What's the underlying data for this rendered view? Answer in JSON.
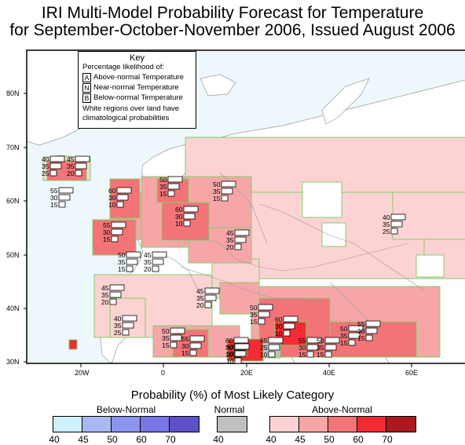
{
  "title_line1": "IRI Multi-Model Probability Forecast for Temperature",
  "title_line2": "for September-October-November 2006, Issued August 2006",
  "key": {
    "heading": "Key",
    "subheading": "Percentage likelihood of:",
    "rows": [
      {
        "letter": "A",
        "label": "Above-normal Temperature"
      },
      {
        "letter": "N",
        "label": "Near-normal Temperature"
      },
      {
        "letter": "B",
        "label": "Below-normal Temperature"
      }
    ],
    "note_line1": "White regions over land have",
    "note_line2": "climatological probabilities"
  },
  "lat_labels": [
    "80N",
    "70N",
    "60N",
    "50N",
    "40N",
    "30N"
  ],
  "lon_labels": [
    "20W",
    "0",
    "20E",
    "40E",
    "60E"
  ],
  "legend": {
    "title": "Probability (%) of Most Likely Category",
    "below_label": "Below-Normal",
    "normal_label": "Normal",
    "above_label": "Above-Normal",
    "below_ticks": [
      "40",
      "45",
      "50",
      "60",
      "70"
    ],
    "normal_ticks": [
      "40"
    ],
    "above_ticks": [
      "40",
      "45",
      "50",
      "60",
      "70"
    ],
    "below_colors": [
      "#cdf0fa",
      "#a9b8f2",
      "#8c94ee",
      "#7876e6",
      "#5e50c8"
    ],
    "normal_colors": [
      "#c0c0c0"
    ],
    "above_colors": [
      "#fcd2d2",
      "#f7a6a8",
      "#f27477",
      "#f52b33",
      "#a81a1e"
    ]
  },
  "colors": {
    "ocean": "#eef8fc",
    "land": "#ffffff",
    "region_border": "#7bd36a",
    "country_border": "#9a9a9a"
  },
  "annotations": [
    {
      "a": "40",
      "n": "35",
      "b": "25"
    },
    {
      "a": "45",
      "n": "35",
      "b": "20"
    },
    {
      "a": "55",
      "n": "30",
      "b": "15"
    },
    {
      "a": "60",
      "n": "30",
      "b": "10"
    },
    {
      "a": "50",
      "n": "35",
      "b": "15"
    },
    {
      "a": "50",
      "n": "35",
      "b": "15"
    },
    {
      "a": "60",
      "n": "30",
      "b": "10"
    },
    {
      "a": "55",
      "n": "30",
      "b": "15"
    },
    {
      "a": "45",
      "n": "35",
      "b": "20"
    },
    {
      "a": "40",
      "n": "35",
      "b": "25"
    },
    {
      "a": "50",
      "n": "35",
      "b": "15"
    },
    {
      "a": "45",
      "n": "35",
      "b": "20"
    },
    {
      "a": "45",
      "n": "35",
      "b": "20"
    },
    {
      "a": "45",
      "n": "35",
      "b": "20"
    },
    {
      "a": "40",
      "n": "35",
      "b": "25"
    },
    {
      "a": "50",
      "n": "35",
      "b": "15"
    },
    {
      "a": "55",
      "n": "30",
      "b": "15"
    },
    {
      "a": "50",
      "n": "35",
      "b": "15"
    },
    {
      "a": "60",
      "n": "30",
      "b": "10"
    },
    {
      "a": "50",
      "n": "35",
      "b": "15"
    },
    {
      "a": "60",
      "n": "30",
      "b": "10"
    },
    {
      "a": "65",
      "n": "25",
      "b": "10"
    },
    {
      "a": "55",
      "n": "30",
      "b": "15"
    },
    {
      "a": "50",
      "n": "35",
      "b": "15"
    },
    {
      "a": "55",
      "n": "30",
      "b": "15"
    },
    {
      "a": "60",
      "n": "30",
      "b": "10"
    }
  ]
}
